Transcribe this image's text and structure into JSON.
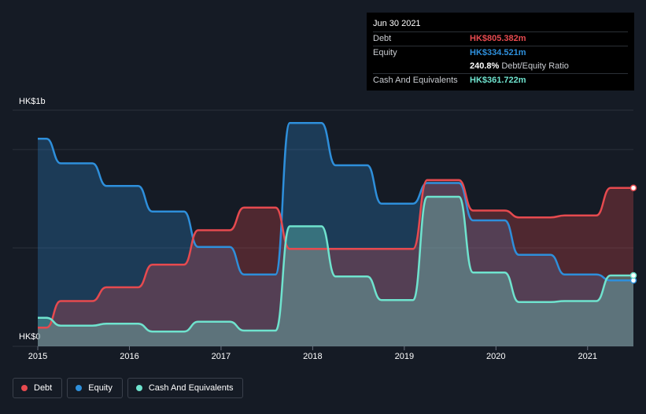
{
  "tooltip": {
    "date": "Jun 30 2021",
    "debt_label": "Debt",
    "debt_value": "HK$805.382m",
    "equity_label": "Equity",
    "equity_value": "HK$334.521m",
    "ratio_value": "240.8%",
    "ratio_label": "Debt/Equity Ratio",
    "cash_label": "Cash And Equivalents",
    "cash_value": "HK$361.722m"
  },
  "y_axis": {
    "top_label": "HK$1b",
    "bottom_label": "HK$0"
  },
  "legend": {
    "debt": "Debt",
    "equity": "Equity",
    "cash": "Cash And Equivalents"
  },
  "colors": {
    "debt": "#e64a4f",
    "equity": "#2e8fdb",
    "cash": "#6fe3ce",
    "background": "#151b25"
  },
  "chart_data": {
    "type": "area",
    "xlabel": "",
    "ylabel": "",
    "ylim": [
      0,
      1200
    ],
    "x_ticks": [
      "2015",
      "2016",
      "2017",
      "2018",
      "2019",
      "2020",
      "2021"
    ],
    "grid": "horizontal",
    "legend_position": "bottom-left",
    "series": [
      {
        "name": "Debt",
        "x": [
          2015.0,
          2015.25,
          2015.5,
          2015.75,
          2016.0,
          2016.25,
          2016.5,
          2016.75,
          2017.0,
          2017.25,
          2017.5,
          2017.75,
          2018.0,
          2018.25,
          2018.5,
          2018.75,
          2019.0,
          2019.25,
          2019.5,
          2019.75,
          2020.0,
          2020.25,
          2020.5,
          2020.75,
          2021.0,
          2021.25,
          2021.5
        ],
        "values": [
          95,
          230,
          230,
          300,
          300,
          415,
          415,
          590,
          590,
          705,
          705,
          495,
          495,
          495,
          495,
          495,
          495,
          845,
          845,
          690,
          690,
          655,
          655,
          665,
          665,
          805,
          805
        ]
      },
      {
        "name": "Equity",
        "x": [
          2015.0,
          2015.25,
          2015.5,
          2015.75,
          2016.0,
          2016.25,
          2016.5,
          2016.75,
          2017.0,
          2017.25,
          2017.5,
          2017.75,
          2018.0,
          2018.25,
          2018.5,
          2018.75,
          2019.0,
          2019.25,
          2019.5,
          2019.75,
          2020.0,
          2020.25,
          2020.5,
          2020.75,
          2021.0,
          2021.25,
          2021.5
        ],
        "values": [
          1055,
          930,
          930,
          815,
          815,
          685,
          685,
          505,
          505,
          365,
          365,
          1135,
          1135,
          920,
          920,
          725,
          725,
          830,
          830,
          640,
          640,
          465,
          465,
          365,
          365,
          335,
          335
        ]
      },
      {
        "name": "Cash And Equivalents",
        "x": [
          2015.0,
          2015.25,
          2015.5,
          2015.75,
          2016.0,
          2016.25,
          2016.5,
          2016.75,
          2017.0,
          2017.25,
          2017.5,
          2017.75,
          2018.0,
          2018.25,
          2018.5,
          2018.75,
          2019.0,
          2019.25,
          2019.5,
          2019.75,
          2020.0,
          2020.25,
          2020.5,
          2020.75,
          2021.0,
          2021.25,
          2021.5
        ],
        "values": [
          145,
          105,
          105,
          115,
          115,
          75,
          75,
          125,
          125,
          80,
          80,
          610,
          610,
          355,
          355,
          235,
          235,
          760,
          760,
          375,
          375,
          225,
          225,
          230,
          230,
          360,
          360
        ]
      }
    ]
  }
}
